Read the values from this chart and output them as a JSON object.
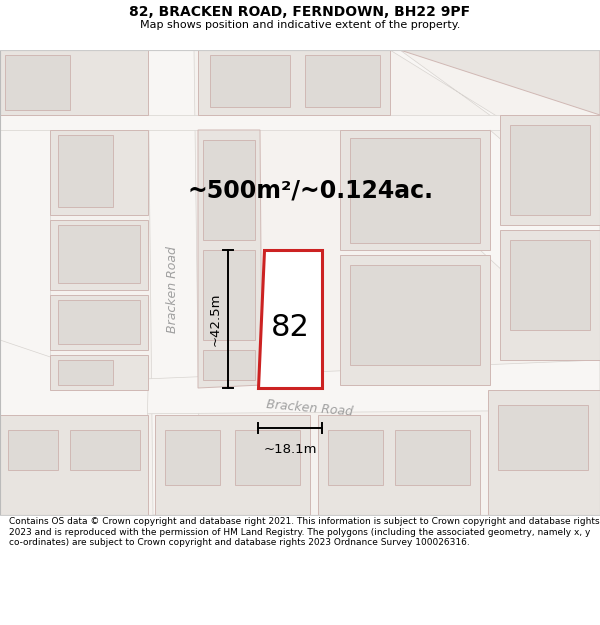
{
  "title_line1": "82, BRACKEN ROAD, FERNDOWN, BH22 9PF",
  "title_line2": "Map shows position and indicative extent of the property.",
  "area_label": "~500m²/~0.124ac.",
  "width_label": "~18.1m",
  "height_label": "~42.5m",
  "plot_number": "82",
  "road_label": "Bracken Road",
  "footer_text": "Contains OS data © Crown copyright and database right 2021. This information is subject to Crown copyright and database rights 2023 and is reproduced with the permission of HM Land Registry. The polygons (including the associated geometry, namely x, y co-ordinates) are subject to Crown copyright and database rights 2023 Ordnance Survey 100026316.",
  "map_bg": "#f5f2ef",
  "plot_stroke": "#cc2222",
  "plot_fill": "#f0ecec",
  "road_gray": "#d8d4d0",
  "road_white": "#f8f6f4",
  "block_fill": "#e8e4e0",
  "block_stroke": "#d0b8b4",
  "block_inner_fill": "#dedad6",
  "header_sep_color": "#cccccc",
  "text_gray": "#a0a0a0",
  "dim_color": "#000000",
  "title1_size": 10,
  "title2_size": 8,
  "footer_size": 6.5,
  "area_label_size": 17,
  "plot_num_size": 22,
  "road_label_size": 9,
  "dim_label_size": 9.5
}
